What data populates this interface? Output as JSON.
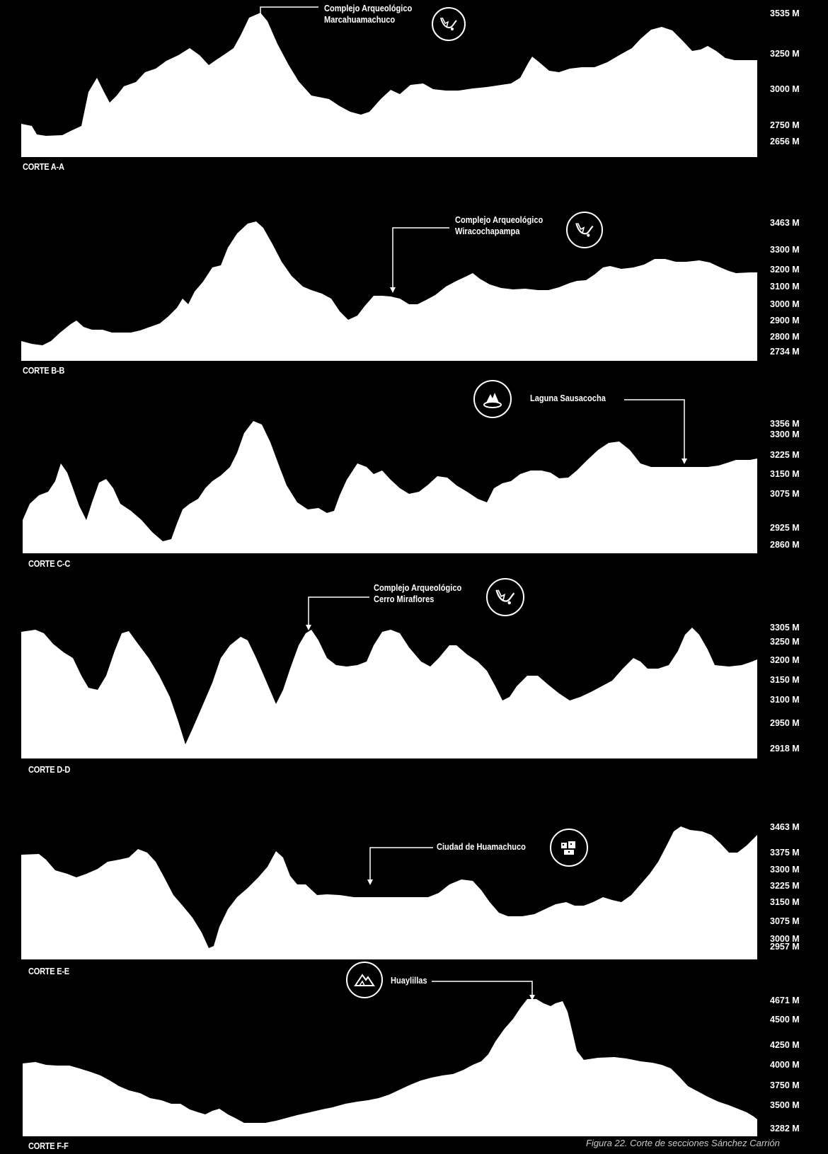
{
  "sections": [
    {
      "label": "CORTE A-A",
      "elevations": [
        "3535 M",
        "3250 M",
        "3000 M",
        "2750 M",
        "2656 M"
      ],
      "annotation": [
        "Complejo Arqueológico",
        "Marcahuamachuco"
      ],
      "icon": "ruins-icon"
    },
    {
      "label": "CORTE B-B",
      "elevations": [
        "3463 M",
        "3300 M",
        "3200 M",
        "3100 M",
        "3000 M",
        "2900 M",
        "2800 M",
        "2734 M"
      ],
      "annotation": [
        "Complejo Arqueológico",
        "Wiracochapampa"
      ],
      "icon": "ruins-icon"
    },
    {
      "label": "CORTE C-C",
      "elevations": [
        "3356 M",
        "3300 M",
        "3225 M",
        "3150 M",
        "3075 M",
        "2925 M",
        "2860 M"
      ],
      "annotation": [
        "Laguna Sausacocha"
      ],
      "icon": "lagoon-icon"
    },
    {
      "label": "CORTE D-D",
      "elevations": [
        "3305 M",
        "3250 M",
        "3200 M",
        "3150 M",
        "3100 M",
        "2950 M",
        "2918 M"
      ],
      "annotation": [
        "Complejo Arqueológico",
        "Cerro Miraflores"
      ],
      "icon": "ruins-icon"
    },
    {
      "label": "CORTE E-E",
      "elevations": [
        "3463 M",
        "3375 M",
        "3300 M",
        "3225 M",
        "3150 M",
        "3075 M",
        "3000 M",
        "2957 M"
      ],
      "annotation": [
        "Ciudad de Huamachuco"
      ],
      "icon": "city-icon"
    },
    {
      "label": "CORTE F-F",
      "elevations": [
        "4671 M",
        "4500 M",
        "4250 M",
        "4000 M",
        "3750 M",
        "3500 M",
        "3282 M"
      ],
      "annotation": [
        "Huaylillas"
      ],
      "icon": "mountain-icon"
    }
  ],
  "caption": "Figura 22. Corte de secciones Sánchez Carrión"
}
